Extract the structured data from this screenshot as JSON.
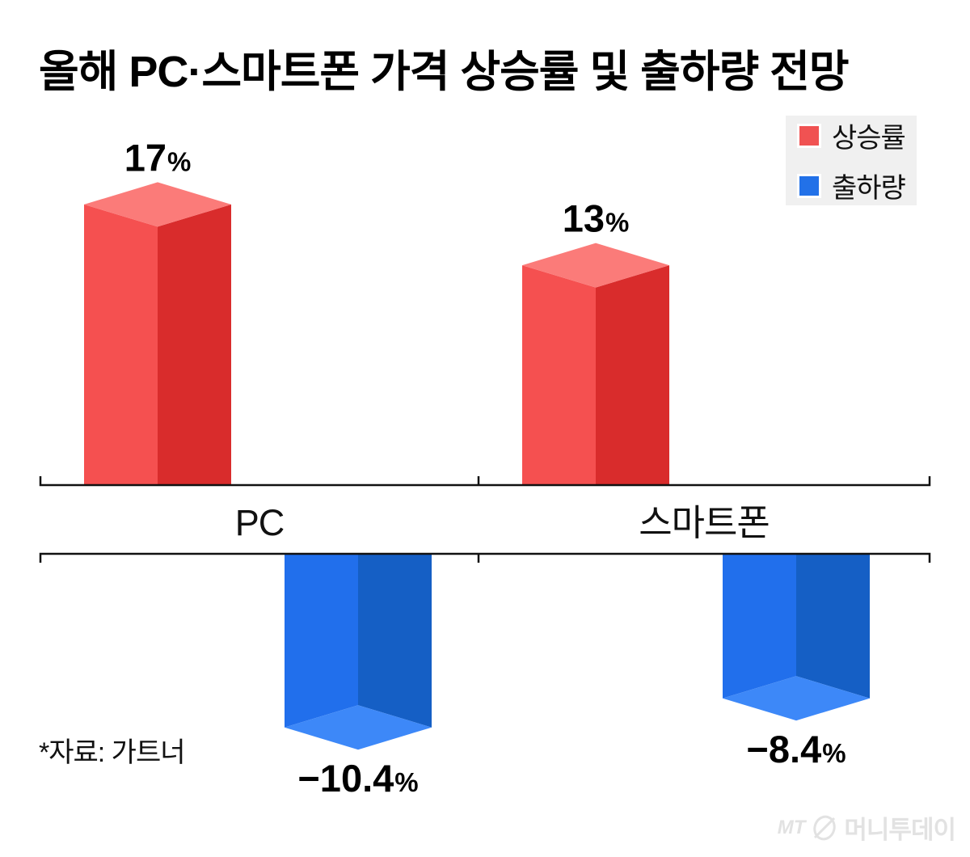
{
  "title": "올해 PC·스마트폰 가격 상승률 및 출하량 전망",
  "legend": {
    "items": [
      {
        "label": "상승률",
        "color": "#f05252"
      },
      {
        "label": "출하량",
        "color": "#2271e8"
      }
    ]
  },
  "source_note": "*자료: 가트너",
  "logo": {
    "mt": "MT",
    "name": "머니투데이"
  },
  "chart_data": {
    "type": "bar",
    "variant": "3d-column-diverging",
    "title": "올해 PC·스마트폰 가격 상승률 및 출하량 전망",
    "categories": [
      "PC",
      "스마트폰"
    ],
    "series": [
      {
        "name": "상승률",
        "direction": "up",
        "values": [
          17,
          13
        ],
        "labels": [
          {
            "main": "17",
            "suffix": "%"
          },
          {
            "main": "13",
            "suffix": "%"
          }
        ],
        "colors": {
          "left": "#f55050",
          "right": "#d92c2c",
          "cap": "#fb7b79"
        }
      },
      {
        "name": "출하량",
        "direction": "down",
        "values": [
          -10.4,
          -8.4
        ],
        "labels": [
          {
            "main": "−10.4",
            "suffix": "%"
          },
          {
            "main": "−8.4",
            "suffix": "%"
          }
        ],
        "colors": {
          "left": "#216fec",
          "right": "#155fc5",
          "cap": "#3d88f8"
        }
      }
    ],
    "unit": "%",
    "ylim_up": [
      0,
      20
    ],
    "ylim_down": [
      0,
      -12
    ],
    "axis_color": "#111111",
    "label_color": "#000000",
    "grid": false,
    "legend_position": "top-right",
    "source": "*자료: 가트너"
  }
}
